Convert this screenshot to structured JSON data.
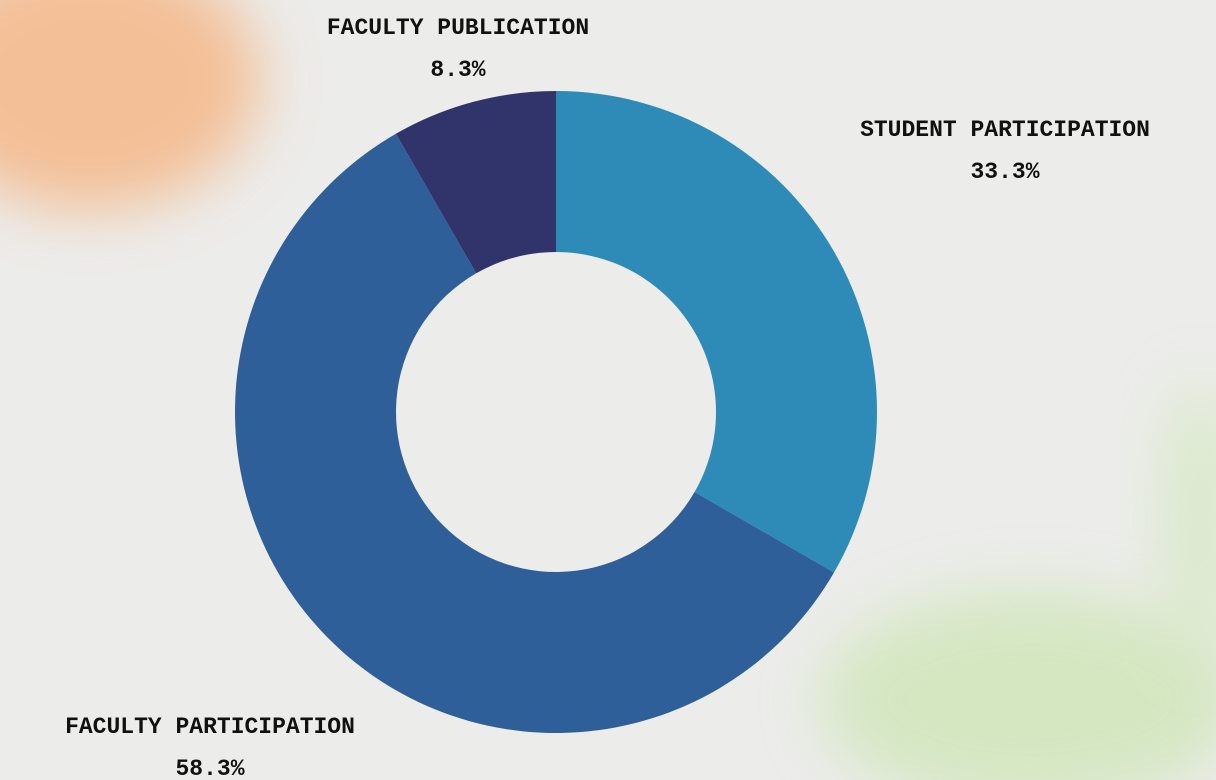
{
  "chart_data": {
    "type": "donut",
    "categories": [
      "STUDENT PARTICIPATION",
      "FACULTY PARTICIPATION",
      "FACULTY PUBLICATION"
    ],
    "values": [
      33.3,
      58.3,
      8.3
    ],
    "value_labels": [
      "33.3%",
      "58.3%",
      "8.3%"
    ],
    "colors": [
      "#2e8bb8",
      "#2f5f98",
      "#31346b"
    ]
  }
}
